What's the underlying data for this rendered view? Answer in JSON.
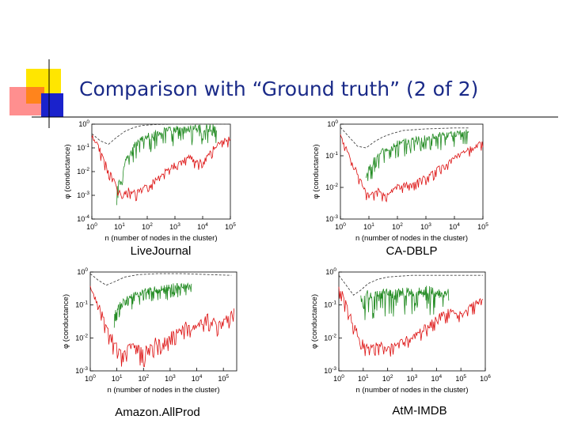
{
  "slide": {
    "title": "Comparison with “Ground truth” (2 of 2)"
  },
  "colors": {
    "title": "#1a2a88",
    "ground_truth": "#228b22",
    "best_conductance": "#dd1111",
    "reference": "#444444",
    "deco_yellow": "#ffe600",
    "deco_red": "#ff3333",
    "deco_blue": "#1a22cc"
  },
  "chart_data": [
    {
      "type": "line",
      "caption": "LiveJournal",
      "xlabel": "n (number of nodes in the cluster)",
      "ylabel": "φ (conductance)",
      "xscale": "log",
      "yscale": "log",
      "xlim_exp": [
        0,
        5
      ],
      "ylim_exp": [
        -4,
        0
      ],
      "xtick_exps": [
        0,
        1,
        2,
        3,
        4,
        5
      ],
      "ytick_exps": [
        0,
        -1,
        -2,
        -3,
        -4
      ],
      "series": [
        {
          "color": "#444444",
          "style": "dashed",
          "points": [
            [
              0,
              -0.4
            ],
            [
              0.3,
              -0.7
            ],
            [
              0.6,
              -0.85
            ],
            [
              0.9,
              -0.55
            ],
            [
              1.2,
              -0.3
            ],
            [
              1.5,
              -0.15
            ],
            [
              1.8,
              -0.06
            ],
            [
              2.2,
              -0.02
            ],
            [
              3,
              0
            ],
            [
              5,
              0
            ]
          ]
        },
        {
          "color": "#228b22",
          "style": "noisy",
          "noise": 0.9,
          "seed": 11,
          "points": [
            [
              0.9,
              -2.6
            ],
            [
              1.1,
              -1.8
            ],
            [
              1.3,
              -1.2
            ],
            [
              1.5,
              -0.8
            ],
            [
              1.8,
              -0.5
            ],
            [
              2.1,
              -0.3
            ],
            [
              2.5,
              -0.15
            ],
            [
              3,
              -0.05
            ],
            [
              3.5,
              -0.02
            ],
            [
              4.5,
              0
            ]
          ]
        },
        {
          "color": "#dd1111",
          "style": "noisy",
          "noise": 0.5,
          "seed": 7,
          "points": [
            [
              0,
              -0.3
            ],
            [
              0.3,
              -1
            ],
            [
              0.6,
              -1.8
            ],
            [
              0.9,
              -2.5
            ],
            [
              1.1,
              -3
            ],
            [
              1.3,
              -2.6
            ],
            [
              1.6,
              -2.8
            ],
            [
              2,
              -2.5
            ],
            [
              2.5,
              -2
            ],
            [
              3,
              -1.6
            ],
            [
              3.5,
              -1.3
            ],
            [
              4,
              -1.5
            ],
            [
              4.3,
              -1
            ],
            [
              4.6,
              -0.7
            ],
            [
              5,
              -0.5
            ]
          ]
        }
      ]
    },
    {
      "type": "line",
      "caption": "CA-DBLP",
      "xlabel": "n (number of nodes in the cluster)",
      "ylabel": "φ (conductance)",
      "xscale": "log",
      "yscale": "log",
      "xlim_exp": [
        0,
        5
      ],
      "ylim_exp": [
        -3,
        0
      ],
      "xtick_exps": [
        0,
        1,
        2,
        3,
        4,
        5
      ],
      "ytick_exps": [
        0,
        -1,
        -2,
        -3
      ],
      "series": [
        {
          "color": "#444444",
          "style": "dashed",
          "points": [
            [
              0,
              -0.1
            ],
            [
              0.3,
              -0.4
            ],
            [
              0.6,
              -0.7
            ],
            [
              0.9,
              -0.75
            ],
            [
              1.2,
              -0.55
            ],
            [
              1.5,
              -0.4
            ],
            [
              1.8,
              -0.3
            ],
            [
              2.2,
              -0.2
            ],
            [
              3,
              -0.15
            ],
            [
              4,
              -0.12
            ],
            [
              4.5,
              -0.12
            ]
          ]
        },
        {
          "color": "#228b22",
          "style": "noisy",
          "noise": 0.6,
          "seed": 23,
          "points": [
            [
              0.9,
              -1.5
            ],
            [
              1.2,
              -1
            ],
            [
              1.5,
              -0.7
            ],
            [
              2,
              -0.5
            ],
            [
              2.5,
              -0.4
            ],
            [
              3,
              -0.35
            ],
            [
              3.5,
              -0.25
            ],
            [
              4,
              -0.2
            ],
            [
              4.5,
              -0.15
            ]
          ]
        },
        {
          "color": "#dd1111",
          "style": "noisy",
          "noise": 0.35,
          "seed": 3,
          "points": [
            [
              0,
              -0.3
            ],
            [
              0.3,
              -0.9
            ],
            [
              0.6,
              -1.5
            ],
            [
              0.8,
              -1.9
            ],
            [
              1,
              -2.2
            ],
            [
              1.3,
              -2
            ],
            [
              1.6,
              -2.2
            ],
            [
              2,
              -1.9
            ],
            [
              2.5,
              -1.8
            ],
            [
              3,
              -1.6
            ],
            [
              3.5,
              -1.3
            ],
            [
              4,
              -1
            ],
            [
              4.5,
              -0.7
            ],
            [
              5,
              -0.5
            ]
          ]
        }
      ]
    },
    {
      "type": "line",
      "caption": "Amazon.AllProd",
      "xlabel": "n (number of nodes in the cluster)",
      "ylabel": "φ (conductance)",
      "xscale": "log",
      "yscale": "log",
      "xlim_exp": [
        0,
        5.5
      ],
      "ylim_exp": [
        -3,
        0
      ],
      "xtick_exps": [
        0,
        1,
        2,
        3,
        4,
        5
      ],
      "ytick_exps": [
        0,
        -1,
        -2,
        -3
      ],
      "series": [
        {
          "color": "#444444",
          "style": "dashed",
          "points": [
            [
              0,
              -0.05
            ],
            [
              0.3,
              -0.25
            ],
            [
              0.6,
              -0.4
            ],
            [
              0.9,
              -0.3
            ],
            [
              1.3,
              -0.15
            ],
            [
              1.8,
              -0.08
            ],
            [
              2.5,
              -0.05
            ],
            [
              3.5,
              -0.05
            ],
            [
              4.5,
              -0.08
            ],
            [
              5.3,
              -0.1
            ]
          ]
        },
        {
          "color": "#228b22",
          "style": "noisy",
          "noise": 0.5,
          "seed": 41,
          "points": [
            [
              0.9,
              -1.2
            ],
            [
              1.1,
              -0.9
            ],
            [
              1.4,
              -0.7
            ],
            [
              1.8,
              -0.55
            ],
            [
              2.2,
              -0.45
            ],
            [
              2.6,
              -0.4
            ],
            [
              3,
              -0.35
            ],
            [
              3.4,
              -0.3
            ],
            [
              3.8,
              -0.35
            ]
          ]
        },
        {
          "color": "#dd1111",
          "style": "noisy",
          "noise": 0.6,
          "seed": 19,
          "points": [
            [
              0,
              -0.3
            ],
            [
              0.3,
              -0.9
            ],
            [
              0.6,
              -1.5
            ],
            [
              0.9,
              -2
            ],
            [
              1.2,
              -2.3
            ],
            [
              1.6,
              -2.1
            ],
            [
              2,
              -2.3
            ],
            [
              2.4,
              -2
            ],
            [
              2.8,
              -1.9
            ],
            [
              3.2,
              -1.7
            ],
            [
              3.6,
              -1.5
            ],
            [
              4,
              -1.6
            ],
            [
              4.4,
              -1.2
            ],
            [
              4.8,
              -1.5
            ],
            [
              5.2,
              -1.2
            ],
            [
              5.4,
              -1.1
            ]
          ]
        }
      ]
    },
    {
      "type": "line",
      "caption": "AtM-IMDB",
      "xlabel": "n (number of nodes in the cluster)",
      "ylabel": "φ (conductance)",
      "xscale": "log",
      "yscale": "log",
      "xlim_exp": [
        0,
        6
      ],
      "ylim_exp": [
        -3,
        0
      ],
      "xtick_exps": [
        0,
        1,
        2,
        3,
        4,
        5,
        6
      ],
      "ytick_exps": [
        0,
        -1,
        -2,
        -3
      ],
      "series": [
        {
          "color": "#444444",
          "style": "dashed",
          "points": [
            [
              0,
              -0.1
            ],
            [
              0.3,
              -0.4
            ],
            [
              0.6,
              -0.7
            ],
            [
              0.9,
              -0.55
            ],
            [
              1.2,
              -0.35
            ],
            [
              1.6,
              -0.22
            ],
            [
              2,
              -0.15
            ],
            [
              3,
              -0.1
            ],
            [
              4,
              -0.1
            ],
            [
              5,
              -0.1
            ],
            [
              5.9,
              -0.1
            ]
          ]
        },
        {
          "color": "#228b22",
          "style": "noisy",
          "noise": 0.9,
          "seed": 57,
          "points": [
            [
              0.9,
              -0.6
            ],
            [
              1.2,
              -0.55
            ],
            [
              1.6,
              -0.5
            ],
            [
              2,
              -0.5
            ],
            [
              2.5,
              -0.45
            ],
            [
              3,
              -0.45
            ],
            [
              3.5,
              -0.4
            ],
            [
              4,
              -0.45
            ],
            [
              4.5,
              -0.5
            ]
          ]
        },
        {
          "color": "#dd1111",
          "style": "noisy",
          "noise": 0.45,
          "seed": 29,
          "points": [
            [
              0,
              -0.3
            ],
            [
              0.3,
              -0.9
            ],
            [
              0.6,
              -1.5
            ],
            [
              0.9,
              -2
            ],
            [
              1.2,
              -2.2
            ],
            [
              1.6,
              -2.1
            ],
            [
              2,
              -2.2
            ],
            [
              2.5,
              -2
            ],
            [
              3,
              -1.9
            ],
            [
              3.5,
              -1.6
            ],
            [
              4,
              -1.3
            ],
            [
              4.5,
              -1.1
            ],
            [
              5,
              -1.2
            ],
            [
              5.5,
              -0.9
            ],
            [
              5.9,
              -0.7
            ]
          ]
        }
      ]
    }
  ]
}
